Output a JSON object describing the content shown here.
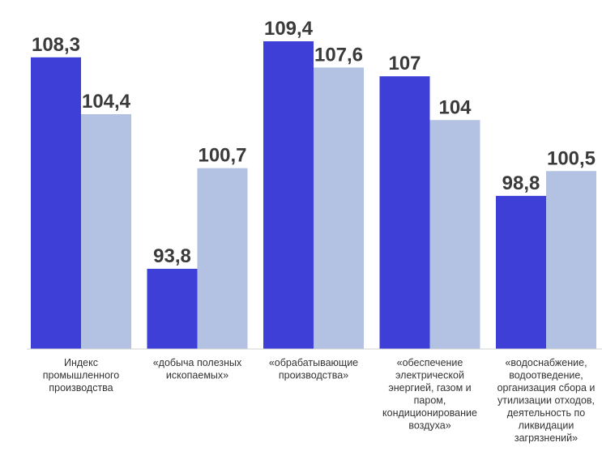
{
  "chart_data": {
    "type": "bar",
    "categories": [
      "Индекс промышленного производства",
      "«добыча полезных ископаемых»",
      "«обрабатывающие производства»",
      "«обеспечение электрической энергией, газом и паром, кондиционирование воздуха»",
      "«водоснабжение, водоотведение, организация сбора и утилизации отходов, деятельность по ликвидации загрязнений»"
    ],
    "category_lines": [
      [
        "Индекс",
        "промышленного",
        "производства"
      ],
      [
        "«добыча полезных",
        "ископаемых»"
      ],
      [
        "«обрабатывающие",
        "производства»"
      ],
      [
        "«обеспечение",
        "электрической",
        "энергией, газом и",
        "паром,",
        "кондиционирование",
        "воздуха»"
      ],
      [
        "«водоснабжение,",
        "водоотведение,",
        "организация сбора и",
        "утилизации отходов,",
        "деятельность по",
        "ликвидации",
        "загрязнений»"
      ]
    ],
    "series": [
      {
        "values": [
          108.3,
          93.8,
          109.4,
          107,
          98.8
        ],
        "labels": [
          "108,3",
          "93,8",
          "109,4",
          "107",
          "98,8"
        ],
        "color": "#3d3fd6"
      },
      {
        "values": [
          104.4,
          100.7,
          107.6,
          104,
          100.5
        ],
        "labels": [
          "104,4",
          "100,7",
          "107,6",
          "104",
          "100,5"
        ],
        "color": "#b3c2e2"
      }
    ],
    "ylim": [
      88.3,
      109.4
    ],
    "grid": false,
    "legend": "none",
    "title": "",
    "xlabel": "",
    "ylabel": ""
  }
}
